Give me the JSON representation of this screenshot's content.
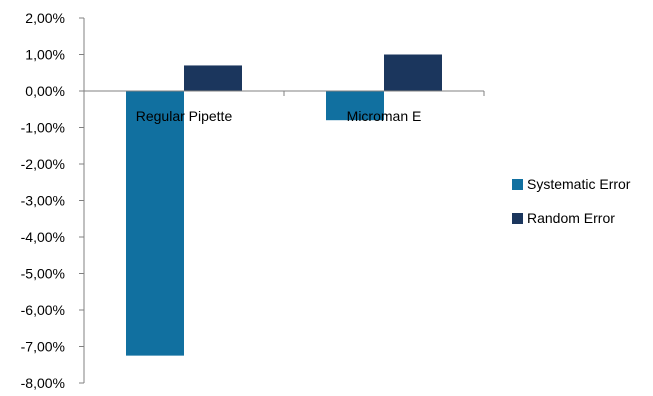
{
  "chart_data": {
    "type": "bar",
    "categories": [
      "Regular Pipette",
      "Microman E"
    ],
    "series": [
      {
        "name": "Systematic Error",
        "color": "#1170A0",
        "values": [
          -7.25,
          -0.8
        ]
      },
      {
        "name": "Random Error",
        "color": "#1B365D",
        "values": [
          0.7,
          1.0
        ]
      }
    ],
    "yticks": [
      "2,00%",
      "1,00%",
      "0,00%",
      "-1,00%",
      "-2,00%",
      "-3,00%",
      "-4,00%",
      "-5,00%",
      "-6,00%",
      "-7,00%",
      "-8,00%"
    ],
    "ylim": [
      -8,
      2
    ],
    "grid": false,
    "legend_position": "right"
  }
}
